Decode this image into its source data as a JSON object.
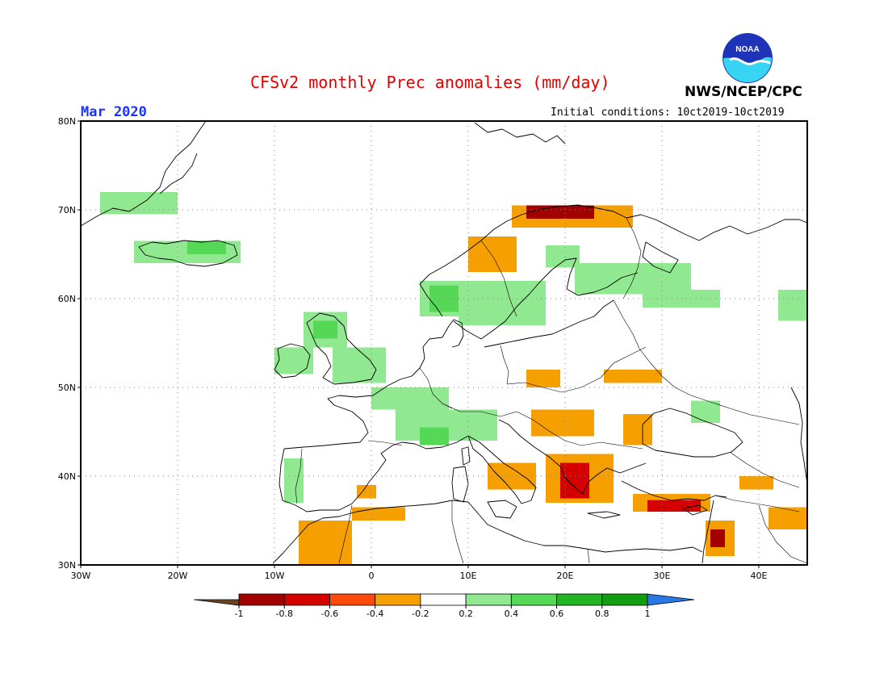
{
  "title": "CFSv2 monthly Prec anomalies (mm/day)",
  "month": "Mar 2020",
  "initial_conditions": "Initial conditions: 10ct2019-10ct2019",
  "agency": "NWS/NCEP/CPC",
  "logo_text": "NOAA",
  "map": {
    "projection": "lat-lon",
    "lon_range": [
      -30,
      45
    ],
    "lat_range": [
      30,
      80
    ],
    "lon_ticks": [
      {
        "lon": -30,
        "label": "30W"
      },
      {
        "lon": -20,
        "label": "20W"
      },
      {
        "lon": -10,
        "label": "10W"
      },
      {
        "lon": 0,
        "label": "0"
      },
      {
        "lon": 10,
        "label": "10E"
      },
      {
        "lon": 20,
        "label": "20E"
      },
      {
        "lon": 30,
        "label": "30E"
      },
      {
        "lon": 40,
        "label": "40E"
      }
    ],
    "lat_ticks": [
      {
        "lat": 30,
        "label": "30N"
      },
      {
        "lat": 40,
        "label": "40N"
      },
      {
        "lat": 50,
        "label": "50N"
      },
      {
        "lat": 60,
        "label": "60N"
      },
      {
        "lat": 70,
        "label": "70N"
      },
      {
        "lat": 80,
        "label": "80N"
      }
    ],
    "grid": "dotted"
  },
  "legend": {
    "ticks": [
      "-1",
      "-0.8",
      "-0.6",
      "-0.4",
      "-0.2",
      "0.2",
      "0.4",
      "0.6",
      "0.8",
      "1"
    ],
    "colors": [
      "#6b4424",
      "#a30000",
      "#d40000",
      "#ff4a0a",
      "#f5a000",
      "#ffffff",
      "#90e890",
      "#55d855",
      "#22b422",
      "#119c11",
      "#2a78e6"
    ]
  },
  "anomaly_regions": [
    {
      "name": "Greenland coast",
      "class": 0.3,
      "lon": [
        -28,
        -20
      ],
      "lat": [
        69.5,
        72
      ]
    },
    {
      "name": "Iceland",
      "class": 0.3,
      "lon": [
        -24.5,
        -13.5
      ],
      "lat": [
        64,
        66.5
      ]
    },
    {
      "name": "Iceland core",
      "class": 0.5,
      "lon": [
        -19,
        -15
      ],
      "lat": [
        65,
        66.5
      ]
    },
    {
      "name": "Scotland",
      "class": 0.3,
      "lon": [
        -7,
        -2.5
      ],
      "lat": [
        54.5,
        58.5
      ]
    },
    {
      "name": "Scotland core",
      "class": 0.5,
      "lon": [
        -6,
        -3.5
      ],
      "lat": [
        55.5,
        57.5
      ]
    },
    {
      "name": "Ireland",
      "class": 0.3,
      "lon": [
        -10,
        -6
      ],
      "lat": [
        51.5,
        54.5
      ]
    },
    {
      "name": "England",
      "class": 0.3,
      "lon": [
        -4,
        1.5
      ],
      "lat": [
        50.5,
        54.5
      ]
    },
    {
      "name": "France north",
      "class": 0.3,
      "lon": [
        0,
        8
      ],
      "lat": [
        47.5,
        50
      ]
    },
    {
      "name": "Alps",
      "class": 0.3,
      "lon": [
        2.5,
        13
      ],
      "lat": [
        44,
        47.5
      ]
    },
    {
      "name": "SE France core",
      "class": 0.5,
      "lon": [
        5,
        8
      ],
      "lat": [
        43.5,
        45.5
      ]
    },
    {
      "name": "Portugal",
      "class": 0.3,
      "lon": [
        -9,
        -7
      ],
      "lat": [
        37,
        42
      ]
    },
    {
      "name": "Norway coast",
      "class": 0.3,
      "lon": [
        5,
        9
      ],
      "lat": [
        58,
        62
      ]
    },
    {
      "name": "Norway core",
      "class": 0.5,
      "lon": [
        6,
        9.5
      ],
      "lat": [
        58.5,
        61.5
      ]
    },
    {
      "name": "Sweden",
      "class": 0.3,
      "lon": [
        9,
        18
      ],
      "lat": [
        57,
        62
      ]
    },
    {
      "name": "Lapland",
      "class": 0.3,
      "lon": [
        18,
        21.5
      ],
      "lat": [
        63.5,
        66
      ]
    },
    {
      "name": "Finland Russia",
      "class": 0.3,
      "lon": [
        21,
        33
      ],
      "lat": [
        60.5,
        64
      ]
    },
    {
      "name": "Russia band",
      "class": 0.3,
      "lon": [
        28,
        36
      ],
      "lat": [
        59,
        61
      ]
    },
    {
      "name": "Urals",
      "class": 0.3,
      "lon": [
        42,
        45
      ],
      "lat": [
        57.5,
        61
      ]
    },
    {
      "name": "Ukraine east",
      "class": 0.3,
      "lon": [
        33,
        36
      ],
      "lat": [
        46,
        48.5
      ]
    },
    {
      "name": "Norway NW",
      "class": -0.3,
      "lon": [
        10,
        15
      ],
      "lat": [
        63,
        67
      ]
    },
    {
      "name": "Norway north",
      "class": -0.3,
      "lon": [
        14.5,
        27
      ],
      "lat": [
        68,
        70.5
      ]
    },
    {
      "name": "Norway north core",
      "class": -0.9,
      "lon": [
        16,
        23
      ],
      "lat": [
        69,
        70.5
      ]
    },
    {
      "name": "Poland",
      "class": -0.3,
      "lon": [
        16,
        19.5
      ],
      "lat": [
        50,
        52
      ]
    },
    {
      "name": "Ukraine",
      "class": -0.3,
      "lon": [
        24,
        30
      ],
      "lat": [
        50.5,
        52
      ]
    },
    {
      "name": "Hungary",
      "class": -0.3,
      "lon": [
        16.5,
        23
      ],
      "lat": [
        44.5,
        47.5
      ]
    },
    {
      "name": "Romania",
      "class": -0.3,
      "lon": [
        26,
        29
      ],
      "lat": [
        43.5,
        47
      ]
    },
    {
      "name": "Italy south",
      "class": -0.3,
      "lon": [
        12,
        17
      ],
      "lat": [
        38.5,
        41.5
      ]
    },
    {
      "name": "Balkans",
      "class": -0.3,
      "lon": [
        18,
        25
      ],
      "lat": [
        37,
        42.5
      ]
    },
    {
      "name": "Greece",
      "class": -0.7,
      "lon": [
        19.5,
        22.5
      ],
      "lat": [
        37.5,
        41.5
      ]
    },
    {
      "name": "Turkey south",
      "class": -0.3,
      "lon": [
        27,
        35
      ],
      "lat": [
        36,
        38
      ]
    },
    {
      "name": "Turkey south core",
      "class": -0.7,
      "lon": [
        28.5,
        34
      ],
      "lat": [
        36,
        37.3
      ]
    },
    {
      "name": "Levant",
      "class": -0.3,
      "lon": [
        34.5,
        37.5
      ],
      "lat": [
        31,
        35
      ]
    },
    {
      "name": "Levant core",
      "class": -0.9,
      "lon": [
        35,
        36.5
      ],
      "lat": [
        32,
        34
      ]
    },
    {
      "name": "Morocco",
      "class": -0.3,
      "lon": [
        -7.5,
        -2
      ],
      "lat": [
        30,
        35
      ]
    },
    {
      "name": "Algeria",
      "class": -0.3,
      "lon": [
        -2,
        3.5
      ],
      "lat": [
        35,
        36.5
      ]
    },
    {
      "name": "Spain east",
      "class": -0.3,
      "lon": [
        -1.5,
        0.5
      ],
      "lat": [
        37.5,
        39
      ]
    },
    {
      "name": "Iraq",
      "class": -0.3,
      "lon": [
        41,
        45
      ],
      "lat": [
        34,
        36.5
      ]
    },
    {
      "name": "Caucasus",
      "class": -0.3,
      "lon": [
        38,
        41.5
      ],
      "lat": [
        38.5,
        40
      ]
    }
  ]
}
